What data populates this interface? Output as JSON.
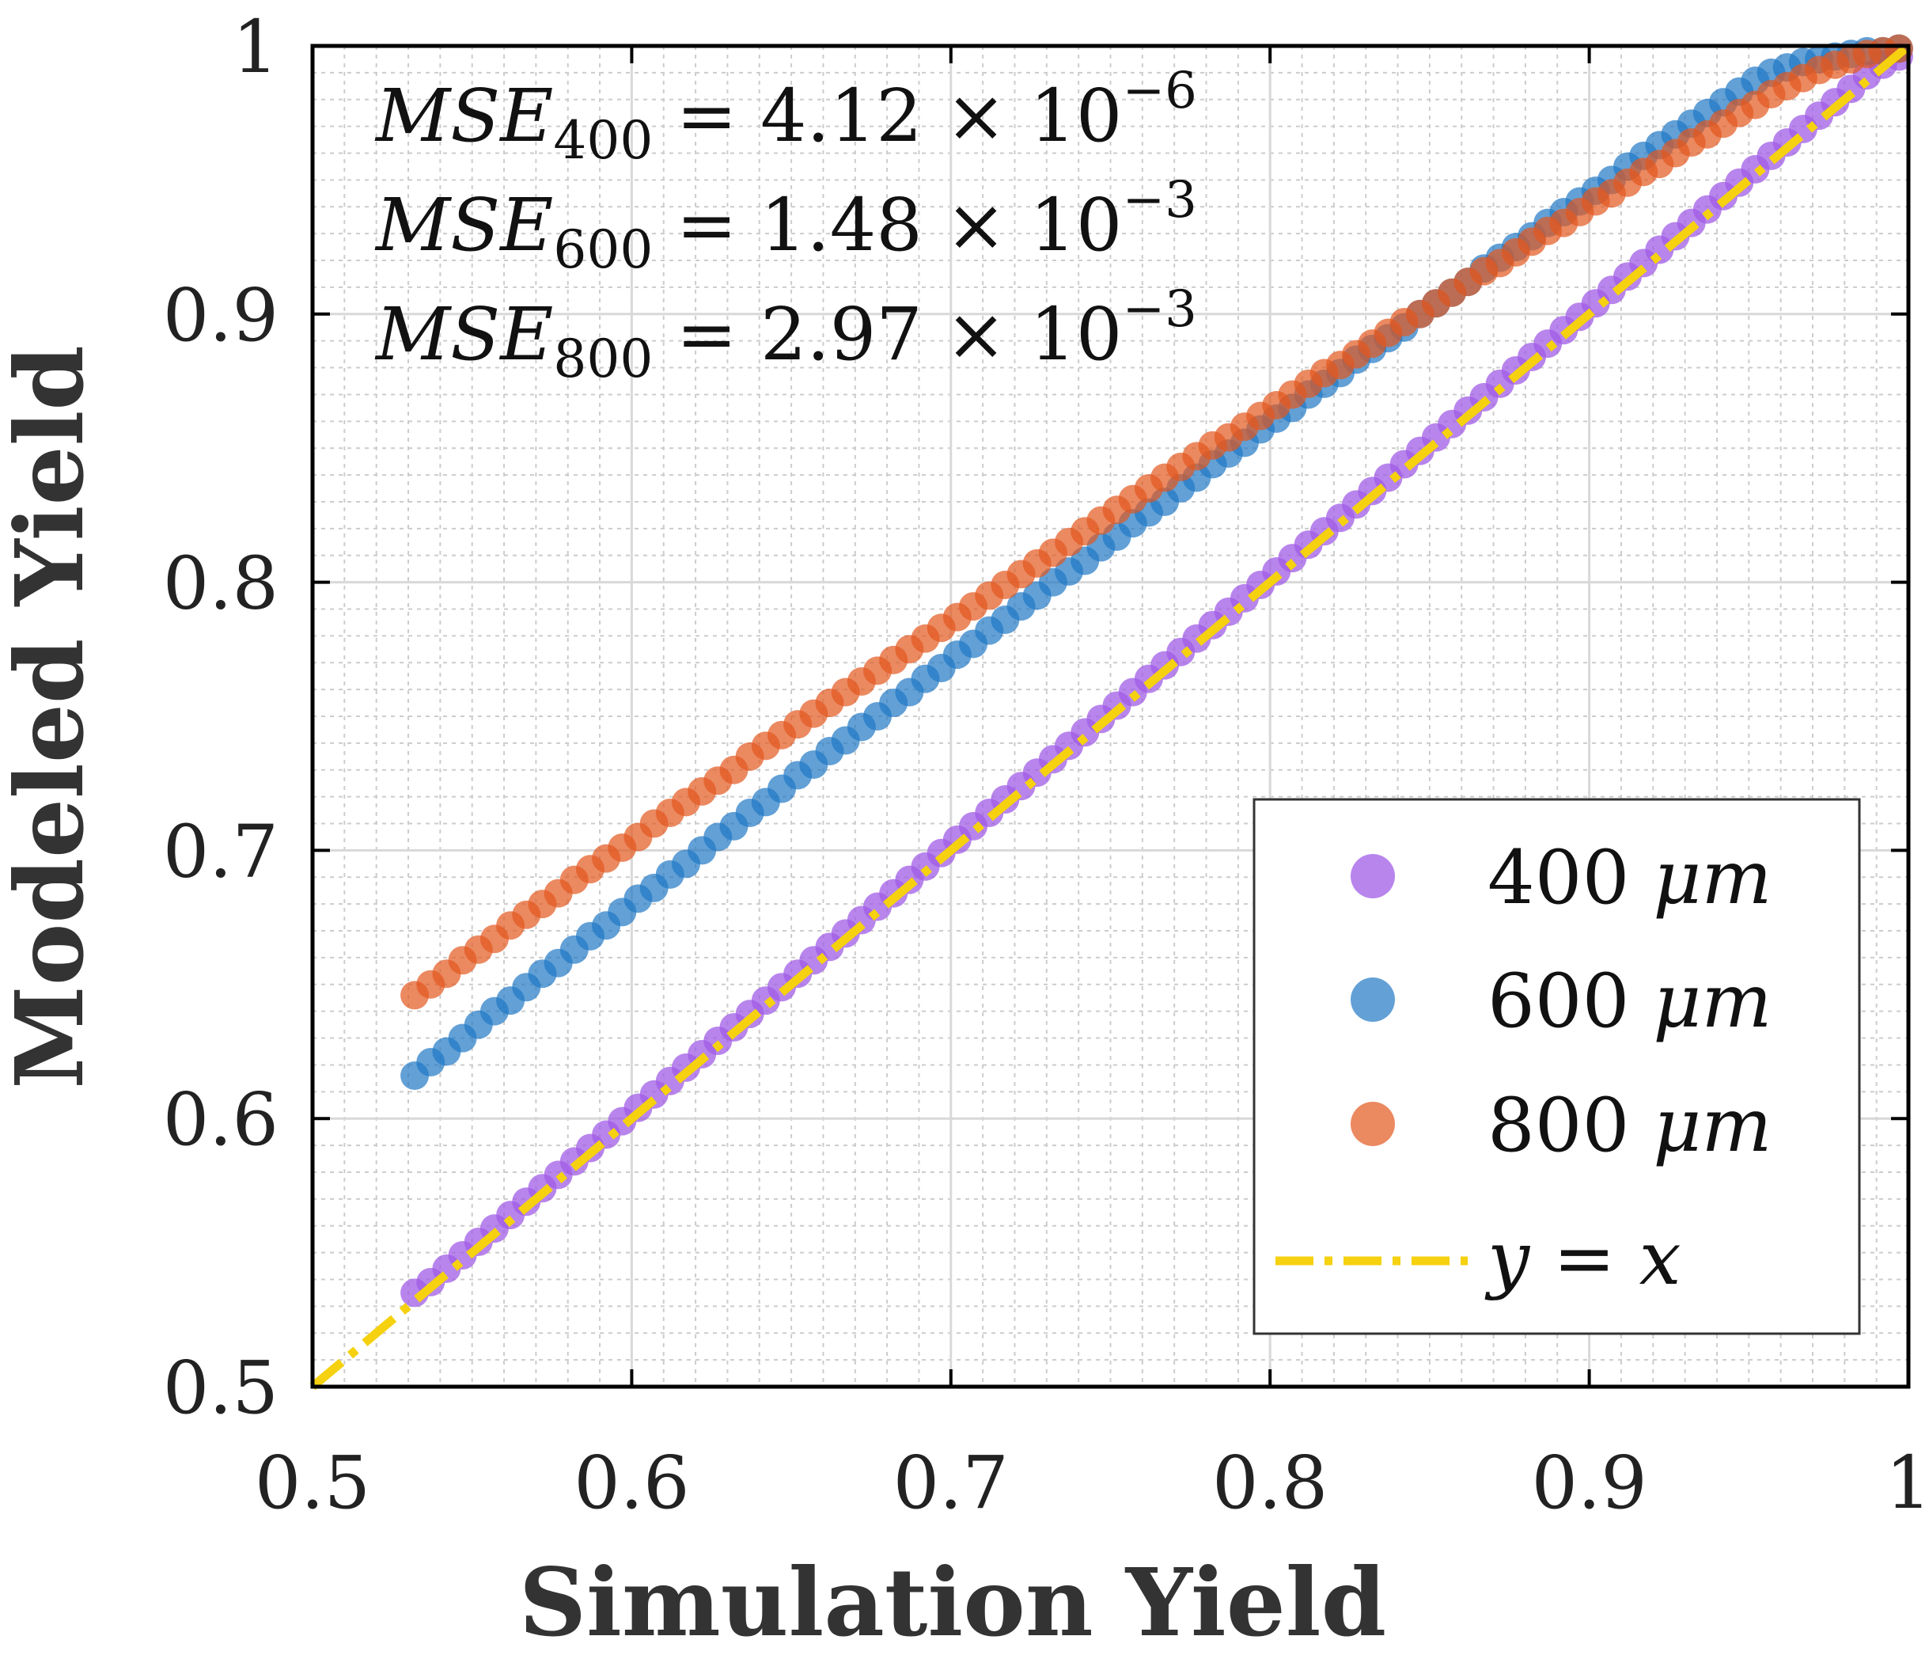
{
  "chart_data": {
    "type": "scatter",
    "title": "",
    "xlabel": "Simulation Yield",
    "ylabel": "Modeled Yield",
    "xlim": [
      0.5,
      1
    ],
    "ylim": [
      0.5,
      1
    ],
    "grid": true,
    "minor_grid": true,
    "legend_position": "bottom-right",
    "xticks": [
      {
        "value": 0.5,
        "label": "0.5"
      },
      {
        "value": 0.6,
        "label": "0.6"
      },
      {
        "value": 0.7,
        "label": "0.7"
      },
      {
        "value": 0.8,
        "label": "0.8"
      },
      {
        "value": 0.9,
        "label": "0.9"
      },
      {
        "value": 1.0,
        "label": "1"
      }
    ],
    "yticks": [
      {
        "value": 0.5,
        "label": "0.5"
      },
      {
        "value": 0.6,
        "label": "0.6"
      },
      {
        "value": 0.7,
        "label": "0.7"
      },
      {
        "value": 0.8,
        "label": "0.8"
      },
      {
        "value": 0.9,
        "label": "0.9"
      },
      {
        "value": 1.0,
        "label": "1"
      }
    ],
    "annotations": [
      {
        "label": "MSE",
        "sub": "400",
        "text": " = 4.12 × 10",
        "exp": "−6"
      },
      {
        "label": "MSE",
        "sub": "600",
        "text": " = 1.48 × 10",
        "exp": "−3"
      },
      {
        "label": "MSE",
        "sub": "800",
        "text": " = 2.97 × 10",
        "exp": "−3"
      }
    ],
    "series": [
      {
        "name": "400 μm",
        "legend_num": "400",
        "legend_unit": "μm",
        "color": "#a05ce6",
        "opacity": 0.75,
        "points": [
          [
            0.532,
            0.535
          ],
          [
            0.537,
            0.539
          ],
          [
            0.542,
            0.544
          ],
          [
            0.547,
            0.549
          ],
          [
            0.552,
            0.554
          ],
          [
            0.557,
            0.559
          ],
          [
            0.562,
            0.564
          ],
          [
            0.567,
            0.569
          ],
          [
            0.572,
            0.574
          ],
          [
            0.577,
            0.579
          ],
          [
            0.582,
            0.584
          ],
          [
            0.587,
            0.589
          ],
          [
            0.592,
            0.594
          ],
          [
            0.597,
            0.599
          ],
          [
            0.602,
            0.604
          ],
          [
            0.607,
            0.609
          ],
          [
            0.612,
            0.614
          ],
          [
            0.617,
            0.619
          ],
          [
            0.622,
            0.624
          ],
          [
            0.627,
            0.629
          ],
          [
            0.632,
            0.634
          ],
          [
            0.637,
            0.639
          ],
          [
            0.642,
            0.644
          ],
          [
            0.647,
            0.649
          ],
          [
            0.652,
            0.654
          ],
          [
            0.657,
            0.659
          ],
          [
            0.662,
            0.664
          ],
          [
            0.667,
            0.669
          ],
          [
            0.672,
            0.674
          ],
          [
            0.677,
            0.679
          ],
          [
            0.682,
            0.684
          ],
          [
            0.687,
            0.689
          ],
          [
            0.692,
            0.694
          ],
          [
            0.697,
            0.699
          ],
          [
            0.702,
            0.704
          ],
          [
            0.707,
            0.709
          ],
          [
            0.712,
            0.714
          ],
          [
            0.717,
            0.719
          ],
          [
            0.722,
            0.724
          ],
          [
            0.727,
            0.729
          ],
          [
            0.732,
            0.734
          ],
          [
            0.737,
            0.739
          ],
          [
            0.742,
            0.744
          ],
          [
            0.747,
            0.749
          ],
          [
            0.752,
            0.754
          ],
          [
            0.757,
            0.759
          ],
          [
            0.762,
            0.764
          ],
          [
            0.767,
            0.769
          ],
          [
            0.772,
            0.774
          ],
          [
            0.777,
            0.779
          ],
          [
            0.782,
            0.784
          ],
          [
            0.787,
            0.789
          ],
          [
            0.792,
            0.794
          ],
          [
            0.797,
            0.799
          ],
          [
            0.802,
            0.804
          ],
          [
            0.807,
            0.809
          ],
          [
            0.812,
            0.814
          ],
          [
            0.817,
            0.819
          ],
          [
            0.822,
            0.824
          ],
          [
            0.827,
            0.829
          ],
          [
            0.832,
            0.834
          ],
          [
            0.837,
            0.839
          ],
          [
            0.842,
            0.844
          ],
          [
            0.847,
            0.849
          ],
          [
            0.852,
            0.854
          ],
          [
            0.857,
            0.859
          ],
          [
            0.862,
            0.864
          ],
          [
            0.867,
            0.869
          ],
          [
            0.872,
            0.874
          ],
          [
            0.877,
            0.879
          ],
          [
            0.882,
            0.884
          ],
          [
            0.887,
            0.889
          ],
          [
            0.892,
            0.894
          ],
          [
            0.897,
            0.899
          ],
          [
            0.902,
            0.904
          ],
          [
            0.907,
            0.909
          ],
          [
            0.912,
            0.914
          ],
          [
            0.917,
            0.919
          ],
          [
            0.922,
            0.924
          ],
          [
            0.927,
            0.929
          ],
          [
            0.932,
            0.934
          ],
          [
            0.937,
            0.939
          ],
          [
            0.942,
            0.944
          ],
          [
            0.947,
            0.949
          ],
          [
            0.952,
            0.954
          ],
          [
            0.957,
            0.959
          ],
          [
            0.962,
            0.964
          ],
          [
            0.967,
            0.969
          ],
          [
            0.972,
            0.974
          ],
          [
            0.977,
            0.979
          ],
          [
            0.982,
            0.984
          ],
          [
            0.987,
            0.989
          ],
          [
            0.992,
            0.993
          ],
          [
            0.997,
            0.996
          ]
        ]
      },
      {
        "name": "600 μm",
        "legend_num": "600",
        "legend_unit": "μm",
        "color": "#1f77c4",
        "opacity": 0.7,
        "points": [
          [
            0.532,
            0.616
          ],
          [
            0.537,
            0.621
          ],
          [
            0.542,
            0.625
          ],
          [
            0.547,
            0.63
          ],
          [
            0.552,
            0.635
          ],
          [
            0.557,
            0.64
          ],
          [
            0.562,
            0.644
          ],
          [
            0.567,
            0.649
          ],
          [
            0.572,
            0.654
          ],
          [
            0.577,
            0.658
          ],
          [
            0.582,
            0.663
          ],
          [
            0.587,
            0.668
          ],
          [
            0.592,
            0.672
          ],
          [
            0.597,
            0.677
          ],
          [
            0.602,
            0.682
          ],
          [
            0.607,
            0.686
          ],
          [
            0.612,
            0.691
          ],
          [
            0.617,
            0.695
          ],
          [
            0.622,
            0.7
          ],
          [
            0.627,
            0.705
          ],
          [
            0.632,
            0.709
          ],
          [
            0.637,
            0.714
          ],
          [
            0.642,
            0.718
          ],
          [
            0.647,
            0.723
          ],
          [
            0.652,
            0.728
          ],
          [
            0.657,
            0.732
          ],
          [
            0.662,
            0.737
          ],
          [
            0.667,
            0.741
          ],
          [
            0.672,
            0.746
          ],
          [
            0.677,
            0.75
          ],
          [
            0.682,
            0.755
          ],
          [
            0.687,
            0.759
          ],
          [
            0.692,
            0.764
          ],
          [
            0.697,
            0.768
          ],
          [
            0.702,
            0.773
          ],
          [
            0.707,
            0.777
          ],
          [
            0.712,
            0.782
          ],
          [
            0.717,
            0.786
          ],
          [
            0.722,
            0.791
          ],
          [
            0.727,
            0.795
          ],
          [
            0.732,
            0.8
          ],
          [
            0.737,
            0.804
          ],
          [
            0.742,
            0.808
          ],
          [
            0.747,
            0.813
          ],
          [
            0.752,
            0.817
          ],
          [
            0.757,
            0.822
          ],
          [
            0.762,
            0.826
          ],
          [
            0.767,
            0.83
          ],
          [
            0.772,
            0.835
          ],
          [
            0.777,
            0.839
          ],
          [
            0.782,
            0.844
          ],
          [
            0.787,
            0.848
          ],
          [
            0.792,
            0.852
          ],
          [
            0.797,
            0.857
          ],
          [
            0.802,
            0.861
          ],
          [
            0.807,
            0.865
          ],
          [
            0.812,
            0.87
          ],
          [
            0.817,
            0.874
          ],
          [
            0.822,
            0.878
          ],
          [
            0.827,
            0.883
          ],
          [
            0.832,
            0.887
          ],
          [
            0.837,
            0.891
          ],
          [
            0.842,
            0.895
          ],
          [
            0.847,
            0.9
          ],
          [
            0.852,
            0.904
          ],
          [
            0.857,
            0.908
          ],
          [
            0.862,
            0.912
          ],
          [
            0.867,
            0.917
          ],
          [
            0.872,
            0.921
          ],
          [
            0.877,
            0.925
          ],
          [
            0.882,
            0.929
          ],
          [
            0.887,
            0.934
          ],
          [
            0.892,
            0.938
          ],
          [
            0.897,
            0.942
          ],
          [
            0.902,
            0.946
          ],
          [
            0.907,
            0.95
          ],
          [
            0.912,
            0.955
          ],
          [
            0.917,
            0.959
          ],
          [
            0.922,
            0.963
          ],
          [
            0.927,
            0.967
          ],
          [
            0.932,
            0.971
          ],
          [
            0.937,
            0.975
          ],
          [
            0.942,
            0.979
          ],
          [
            0.947,
            0.983
          ],
          [
            0.952,
            0.987
          ],
          [
            0.957,
            0.99
          ],
          [
            0.962,
            0.992
          ],
          [
            0.967,
            0.994
          ],
          [
            0.972,
            0.995
          ],
          [
            0.977,
            0.996
          ],
          [
            0.982,
            0.997
          ],
          [
            0.987,
            0.998
          ],
          [
            0.992,
            0.998
          ],
          [
            0.997,
            0.999
          ]
        ]
      },
      {
        "name": "800 μm",
        "legend_num": "800",
        "legend_unit": "μm",
        "color": "#e2571e",
        "opacity": 0.7,
        "points": [
          [
            0.532,
            0.646
          ],
          [
            0.537,
            0.65
          ],
          [
            0.542,
            0.654
          ],
          [
            0.547,
            0.659
          ],
          [
            0.552,
            0.663
          ],
          [
            0.557,
            0.667
          ],
          [
            0.562,
            0.672
          ],
          [
            0.567,
            0.676
          ],
          [
            0.572,
            0.68
          ],
          [
            0.577,
            0.684
          ],
          [
            0.582,
            0.689
          ],
          [
            0.587,
            0.693
          ],
          [
            0.592,
            0.697
          ],
          [
            0.597,
            0.701
          ],
          [
            0.602,
            0.705
          ],
          [
            0.607,
            0.71
          ],
          [
            0.612,
            0.714
          ],
          [
            0.617,
            0.718
          ],
          [
            0.622,
            0.722
          ],
          [
            0.627,
            0.726
          ],
          [
            0.632,
            0.73
          ],
          [
            0.637,
            0.735
          ],
          [
            0.642,
            0.739
          ],
          [
            0.647,
            0.743
          ],
          [
            0.652,
            0.747
          ],
          [
            0.657,
            0.751
          ],
          [
            0.662,
            0.755
          ],
          [
            0.667,
            0.759
          ],
          [
            0.672,
            0.763
          ],
          [
            0.677,
            0.767
          ],
          [
            0.682,
            0.771
          ],
          [
            0.687,
            0.775
          ],
          [
            0.692,
            0.779
          ],
          [
            0.697,
            0.783
          ],
          [
            0.702,
            0.787
          ],
          [
            0.707,
            0.791
          ],
          [
            0.712,
            0.795
          ],
          [
            0.717,
            0.799
          ],
          [
            0.722,
            0.803
          ],
          [
            0.727,
            0.807
          ],
          [
            0.732,
            0.811
          ],
          [
            0.737,
            0.815
          ],
          [
            0.742,
            0.819
          ],
          [
            0.747,
            0.823
          ],
          [
            0.752,
            0.827
          ],
          [
            0.757,
            0.831
          ],
          [
            0.762,
            0.835
          ],
          [
            0.767,
            0.839
          ],
          [
            0.772,
            0.843
          ],
          [
            0.777,
            0.847
          ],
          [
            0.782,
            0.851
          ],
          [
            0.787,
            0.854
          ],
          [
            0.792,
            0.858
          ],
          [
            0.797,
            0.862
          ],
          [
            0.802,
            0.866
          ],
          [
            0.807,
            0.87
          ],
          [
            0.812,
            0.874
          ],
          [
            0.817,
            0.878
          ],
          [
            0.822,
            0.881
          ],
          [
            0.827,
            0.885
          ],
          [
            0.832,
            0.889
          ],
          [
            0.837,
            0.893
          ],
          [
            0.842,
            0.897
          ],
          [
            0.847,
            0.9
          ],
          [
            0.852,
            0.904
          ],
          [
            0.857,
            0.908
          ],
          [
            0.862,
            0.912
          ],
          [
            0.867,
            0.916
          ],
          [
            0.872,
            0.919
          ],
          [
            0.877,
            0.923
          ],
          [
            0.882,
            0.927
          ],
          [
            0.887,
            0.931
          ],
          [
            0.892,
            0.934
          ],
          [
            0.897,
            0.938
          ],
          [
            0.902,
            0.942
          ],
          [
            0.907,
            0.945
          ],
          [
            0.912,
            0.949
          ],
          [
            0.917,
            0.953
          ],
          [
            0.922,
            0.956
          ],
          [
            0.927,
            0.96
          ],
          [
            0.932,
            0.964
          ],
          [
            0.937,
            0.967
          ],
          [
            0.942,
            0.971
          ],
          [
            0.947,
            0.975
          ],
          [
            0.952,
            0.978
          ],
          [
            0.957,
            0.982
          ],
          [
            0.962,
            0.985
          ],
          [
            0.967,
            0.988
          ],
          [
            0.972,
            0.991
          ],
          [
            0.977,
            0.993
          ],
          [
            0.982,
            0.995
          ],
          [
            0.987,
            0.997
          ],
          [
            0.992,
            0.998
          ],
          [
            0.997,
            0.999
          ]
        ]
      }
    ],
    "reference_line": {
      "name": "y = x",
      "legend_lhs": "y",
      "legend_eq": " = ",
      "legend_rhs": "x",
      "color": "#f5d10f",
      "style": "dash-dot",
      "points": [
        [
          0.5,
          0.5
        ],
        [
          1.0,
          1.0
        ]
      ]
    }
  }
}
